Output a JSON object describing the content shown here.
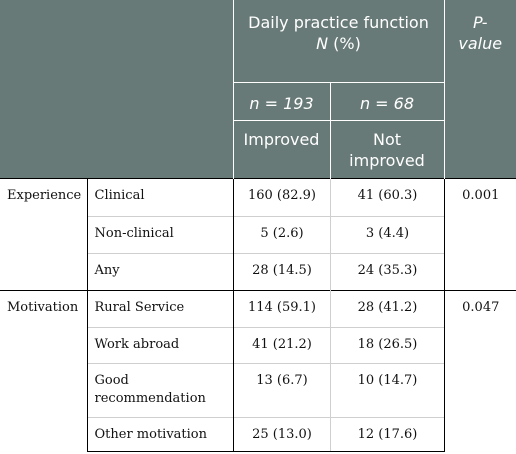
{
  "header": {
    "group_title_line1": "Daily practice function",
    "group_title_n": "N",
    "group_title_pct": " (%)",
    "pvalue_line1": "P-",
    "pvalue_line2": "value",
    "col_improved_n": "n = 193",
    "col_notimproved_n": "n = 68",
    "col_improved_label": "Improved",
    "col_notimproved_label_line1": "Not",
    "col_notimproved_label_line2": "improved"
  },
  "groups": [
    {
      "label": "Experience",
      "p_value": "0.001",
      "rows": [
        {
          "category": "Clinical",
          "improved": "160 (82.9)",
          "not_improved": "41 (60.3)"
        },
        {
          "category": "Non-clinical",
          "improved": "5 (2.6)",
          "not_improved": "3 (4.4)"
        },
        {
          "category": "Any",
          "improved": "28 (14.5)",
          "not_improved": "24 (35.3)"
        }
      ]
    },
    {
      "label": "Motivation",
      "p_value": "0.047",
      "rows": [
        {
          "category": "Rural Service",
          "improved": "114 (59.1)",
          "not_improved": "28 (41.2)"
        },
        {
          "category": "Work abroad",
          "improved": "41 (21.2)",
          "not_improved": "18 (26.5)"
        },
        {
          "category_line1": "Good",
          "category_line2": "recommendation",
          "improved": "13 (6.7)",
          "not_improved": "10 (14.7)"
        },
        {
          "category": "Other motivation",
          "improved": "25 (13.0)",
          "not_improved": "12 (17.6)"
        }
      ]
    }
  ]
}
